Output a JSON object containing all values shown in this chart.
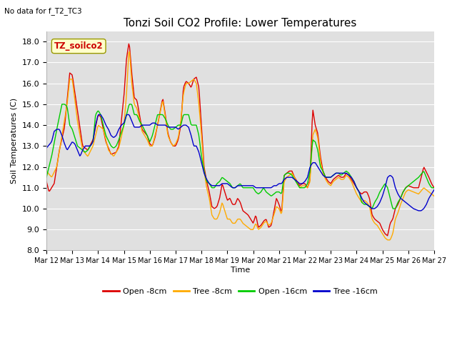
{
  "title": "Tonzi Soil CO2 Profile: Lower Temperatures",
  "top_left_note": "No data for f_T2_TC3",
  "ylabel": "Soil Temperatures (C)",
  "xlabel": "Time",
  "annotation_label": "TZ_soilco2",
  "ylim": [
    8.0,
    18.5
  ],
  "yticks": [
    8.0,
    9.0,
    10.0,
    11.0,
    12.0,
    13.0,
    14.0,
    15.0,
    16.0,
    17.0,
    18.0
  ],
  "background_color": "#e0e0e0",
  "series_colors": {
    "open_8cm": "#dd0000",
    "tree_8cm": "#ffaa00",
    "open_16cm": "#00cc00",
    "tree_16cm": "#0000cc"
  },
  "legend_labels": [
    "Open -8cm",
    "Tree -8cm",
    "Open -16cm",
    "Tree -16cm"
  ],
  "x_tick_labels": [
    "Mar 12",
    "Mar 13",
    "Mar 14",
    "Mar 15",
    "Mar 16",
    "Mar 17",
    "Mar 18",
    "Mar 19",
    "Mar 20",
    "Mar 21",
    "Mar 22",
    "Mar 23",
    "Mar 24",
    "Mar 25",
    "Mar 26",
    "Mar 27"
  ],
  "line_width": 1.0,
  "fig_width": 6.4,
  "fig_height": 4.8,
  "dpi": 100
}
